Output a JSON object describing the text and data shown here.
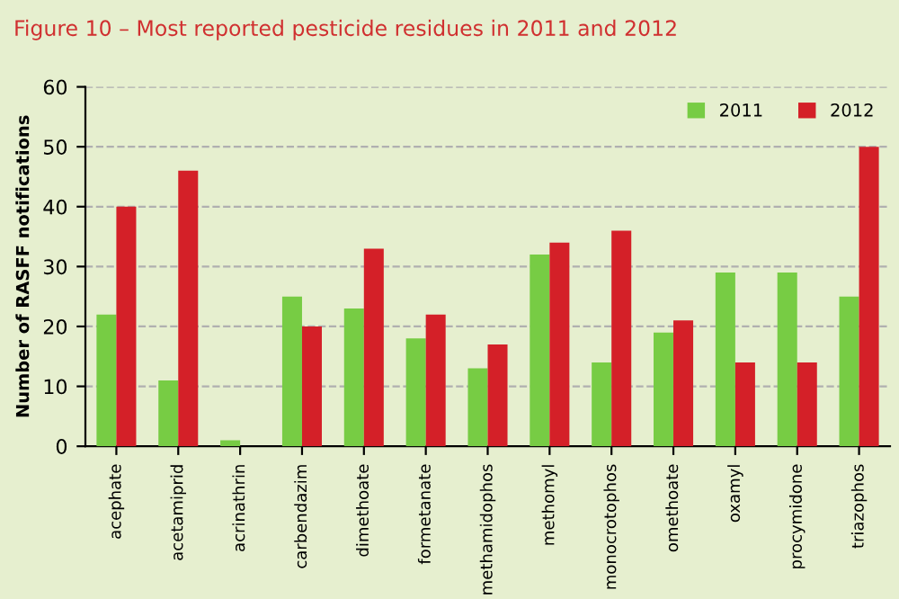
{
  "chart_data": {
    "type": "bar",
    "title": "Figure 10 – Most reported pesticide residues in 2011 and 2012",
    "ylabel": "Number of RASFF notifications",
    "categories": [
      "acephate",
      "acetamiprid",
      "acrinathrin",
      "carbendazim",
      "dimethoate",
      "formetanate",
      "methamidophos",
      "methomyl",
      "monocrotophos",
      "omethoate",
      "oxamyl",
      "procymidone",
      "triazophos"
    ],
    "series": [
      {
        "name": "2011",
        "color": "#77cc44",
        "values": [
          22,
          11,
          1,
          25,
          23,
          18,
          13,
          32,
          14,
          19,
          29,
          29,
          25
        ]
      },
      {
        "name": "2012",
        "color": "#d42028",
        "values": [
          40,
          46,
          0,
          20,
          33,
          22,
          17,
          34,
          36,
          21,
          14,
          14,
          50
        ]
      }
    ],
    "ylim": [
      0,
      60
    ],
    "yticks": [
      0,
      10,
      20,
      30,
      40,
      50,
      60
    ],
    "grid": "y",
    "legend": "top right"
  }
}
